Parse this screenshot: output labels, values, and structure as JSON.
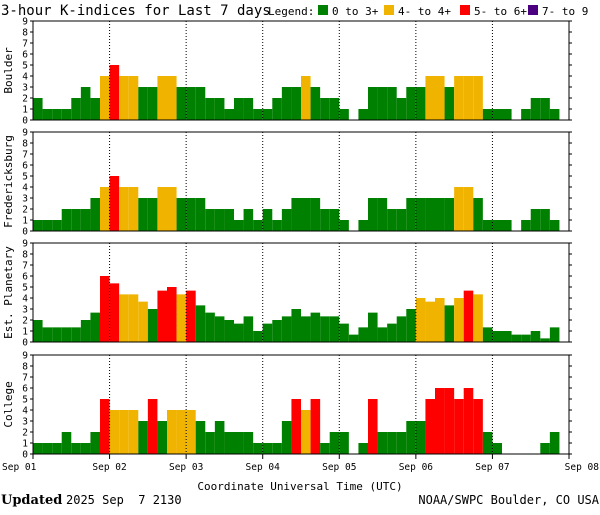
{
  "header": {
    "title": "3-hour K-indices for Last 7 days",
    "legend_title": "Legend:",
    "legend_items": [
      {
        "label": "0 to 3+",
        "color": "#008000"
      },
      {
        "label": "4- to 4+",
        "color": "#f0b400"
      },
      {
        "label": "5- to 6+",
        "color": "#ff0000"
      },
      {
        "label": "7- to 9",
        "color": "#4b0082"
      }
    ]
  },
  "footer": {
    "updated_label": "Updated",
    "updated_value": "2025 Sep  7 2130",
    "credit": "NOAA/SWPC Boulder, CO USA"
  },
  "chart_data": {
    "type": "bar",
    "title": "3-hour K-indices for Last 7 days",
    "xlabel": "Coordinate Universal Time (UTC)",
    "x_ticks": [
      "Sep 01",
      "Sep 02",
      "Sep 03",
      "Sep 04",
      "Sep 05",
      "Sep 06",
      "Sep 07",
      "Sep 08"
    ],
    "ylim": [
      0,
      9
    ],
    "y_ticks": [
      "0",
      "1",
      "2",
      "3",
      "4",
      "5",
      "6",
      "7",
      "8",
      "9"
    ],
    "interval_hours": 3,
    "grid": "dotted vertical at each day",
    "panels": [
      {
        "name": "Boulder",
        "values": [
          2,
          1,
          1,
          1,
          2,
          3,
          2,
          4,
          5,
          4,
          4,
          3,
          3,
          4,
          4,
          3,
          3,
          3,
          2,
          2,
          1,
          2,
          2,
          1,
          1,
          2,
          3,
          3,
          4,
          3,
          2,
          2,
          1,
          0,
          1,
          3,
          3,
          3,
          2,
          3,
          3,
          4,
          4,
          3,
          4,
          4,
          4,
          1,
          1,
          1,
          0,
          1,
          2,
          2,
          1,
          0
        ]
      },
      {
        "name": "Fredericksburg",
        "values": [
          1,
          1,
          1,
          2,
          2,
          2,
          3,
          4,
          5,
          4,
          4,
          3,
          3,
          4,
          4,
          3,
          3,
          3,
          2,
          2,
          2,
          1,
          2,
          1,
          2,
          1,
          2,
          3,
          3,
          3,
          2,
          2,
          1,
          0,
          1,
          3,
          3,
          2,
          2,
          3,
          3,
          3,
          3,
          3,
          4,
          4,
          3,
          1,
          1,
          1,
          0,
          1,
          2,
          2,
          1,
          0
        ]
      },
      {
        "name": "Est. Planetary",
        "values": [
          2,
          1.33,
          1.33,
          1.33,
          1.33,
          2,
          2.67,
          6,
          5.33,
          4.33,
          4.33,
          3.67,
          3,
          4.67,
          5,
          4.33,
          4.67,
          3.33,
          2.67,
          2.33,
          2,
          1.67,
          2.33,
          1,
          1.67,
          2,
          2.33,
          3,
          2.33,
          2.67,
          2.33,
          2.33,
          1.67,
          0.67,
          1.33,
          2.67,
          1.33,
          1.67,
          2.33,
          3,
          4,
          3.67,
          4,
          3.33,
          4,
          4.67,
          4.33,
          1.33,
          1,
          1,
          0.67,
          0.67,
          1,
          0.33,
          1.33,
          0
        ]
      },
      {
        "name": "College",
        "values": [
          1,
          1,
          1,
          2,
          1,
          1,
          2,
          5,
          4,
          4,
          4,
          3,
          5,
          3,
          4,
          4,
          4,
          3,
          2,
          3,
          2,
          2,
          2,
          1,
          1,
          1,
          3,
          5,
          4,
          5,
          1,
          2,
          2,
          0,
          1,
          5,
          2,
          2,
          2,
          3,
          3,
          5,
          6,
          6,
          5,
          6,
          5,
          2,
          1,
          0,
          0,
          0,
          0,
          1,
          2,
          0
        ]
      }
    ]
  }
}
